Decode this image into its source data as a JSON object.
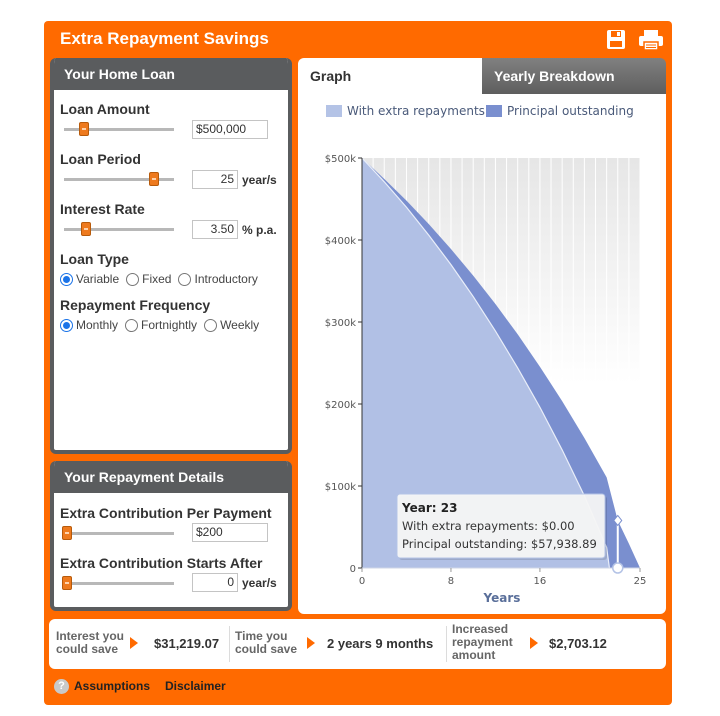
{
  "header": {
    "title": "Extra Repayment Savings",
    "save_icon": "save-icon",
    "print_icon": "print-icon"
  },
  "home_loan": {
    "heading": "Your Home Loan",
    "loan_amount": {
      "label": "Loan Amount",
      "value": "$500,000"
    },
    "loan_period": {
      "label": "Loan Period",
      "value": "25",
      "unit": "year/s"
    },
    "interest_rate": {
      "label": "Interest Rate",
      "value": "3.50",
      "unit": "% p.a."
    },
    "loan_type": {
      "label": "Loan Type",
      "options": [
        "Variable",
        "Fixed",
        "Introductory"
      ],
      "selected": "Variable"
    },
    "repayment_frequency": {
      "label": "Repayment Frequency",
      "options": [
        "Monthly",
        "Fortnightly",
        "Weekly"
      ],
      "selected": "Monthly"
    }
  },
  "repayment_details": {
    "heading": "Your Repayment Details",
    "extra_contribution": {
      "label": "Extra Contribution Per Payment",
      "value": "$200"
    },
    "starts_after": {
      "label": "Extra Contribution Starts After",
      "value": "0",
      "unit": "year/s"
    }
  },
  "tabs": [
    {
      "label": "Graph",
      "active": true
    },
    {
      "label": "Yearly Breakdown",
      "active": false
    }
  ],
  "chart_data": {
    "type": "area",
    "xlabel": "Years",
    "ylabel": "",
    "x_ticks": [
      0,
      8,
      16,
      25
    ],
    "y_ticks": [
      "0",
      "$100k",
      "$200k",
      "$300k",
      "$400k",
      "$500k"
    ],
    "xlim": [
      0,
      25
    ],
    "ylim": [
      0,
      500000
    ],
    "legend_position": "top",
    "series": [
      {
        "name": "With extra repayments",
        "color": "#b4c3e6",
        "x": [
          0,
          2,
          4,
          6,
          8,
          10,
          12,
          14,
          16,
          18,
          20,
          22,
          22.25
        ],
        "y": [
          500000,
          471000,
          440000,
          406000,
          370000,
          331000,
          289000,
          244000,
          196000,
          144000,
          88000,
          25000,
          0
        ]
      },
      {
        "name": "Principal outstanding",
        "color": "#7a8fcf",
        "x": [
          0,
          2,
          4,
          6,
          8,
          10,
          12,
          14,
          16,
          18,
          20,
          22,
          23,
          24,
          25
        ],
        "y": [
          500000,
          474500,
          448000,
          419500,
          389000,
          356500,
          322000,
          285000,
          245500,
          203500,
          158500,
          110500,
          57938.89,
          29800,
          0
        ]
      }
    ],
    "tooltip": {
      "title": "Year: 23",
      "line1": "With extra repayments: $0.00",
      "line2": "Principal outstanding: $57,938.89",
      "x": 23
    }
  },
  "summary": {
    "interest_label_1": "Interest you",
    "interest_label_2": "could save",
    "interest_value": "$31,219.07",
    "time_label_1": "Time you",
    "time_label_2": "could save",
    "time_value": "2 years 9 months",
    "increase_label_1": "Increased",
    "increase_label_2": "repayment",
    "increase_label_3": "amount",
    "increase_value": "$2,703.12"
  },
  "footer": {
    "assumptions": "Assumptions",
    "disclaimer": "Disclaimer",
    "help_icon": "?"
  }
}
